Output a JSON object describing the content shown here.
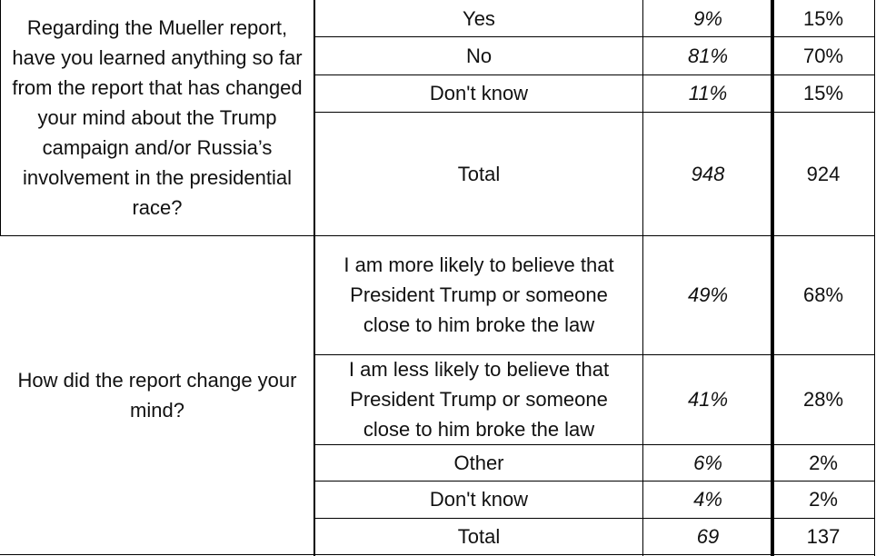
{
  "sections": [
    {
      "question": "Regarding the Mueller report, have you learned anything so far from the report that has changed your mind about the Trump campaign and/or Russia’s involvement in the presidential race?",
      "rows": [
        {
          "answer": "Yes",
          "col1": "9%",
          "col2": "15%"
        },
        {
          "answer": "No",
          "col1": "81%",
          "col2": "70%"
        },
        {
          "answer": "Don't know",
          "col1": "11%",
          "col2": "15%"
        },
        {
          "answer": "Total",
          "col1": "948",
          "col2": "924"
        }
      ]
    },
    {
      "question": "How did the report change your mind?",
      "rows": [
        {
          "answer": "I am more likely to believe that President Trump or someone close to him broke the law",
          "col1": "49%",
          "col2": "68%"
        },
        {
          "answer": "I am less likely to believe that President Trump or someone close to him broke the law",
          "col1": "41%",
          "col2": "28%"
        },
        {
          "answer": "Other",
          "col1": "6%",
          "col2": "2%"
        },
        {
          "answer": "Don't know",
          "col1": "4%",
          "col2": "2%"
        },
        {
          "answer": "Total",
          "col1": "69",
          "col2": "137"
        }
      ]
    }
  ]
}
